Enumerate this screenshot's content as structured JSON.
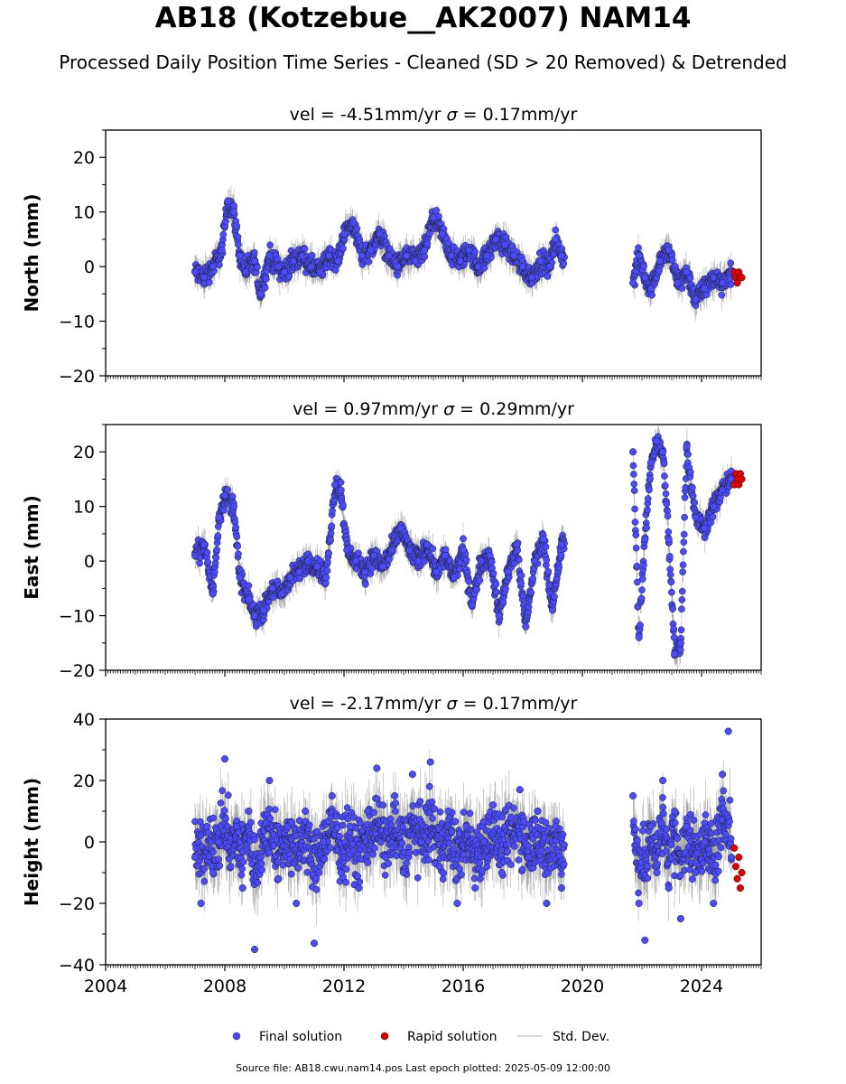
{
  "figure": {
    "title": "AB18 (Kotzebue__AK2007) NAM14",
    "subtitle": "Processed Daily Position Time Series - Cleaned (SD > 20 Removed) & Detrended",
    "footer": "Source file: AB18.cwu.nam14.pos  Last epoch plotted: 2025-05-09 12:00:00",
    "legend": {
      "placement": "bottom-center",
      "items": [
        {
          "label": "Final solution",
          "color": "#4a4aff"
        },
        {
          "label": "Rapid solution",
          "color": "#e00000"
        },
        {
          "label": "Std. Dev.",
          "color": "#c8c8c8"
        }
      ]
    }
  },
  "chart_data": [
    {
      "type": "scatter",
      "title_vel": "vel = -4.51mm/yr",
      "title_sigma": " = 0.17mm/yr",
      "ylabel": "North (mm)",
      "xlim": [
        2004,
        2026
      ],
      "ylim": [
        -20,
        25
      ],
      "yticks": [
        -20,
        -10,
        0,
        10,
        20
      ],
      "grid": false,
      "data_gap": [
        2019.4,
        2021.7
      ],
      "series": [
        {
          "name": "Final solution",
          "color": "#4a4aff",
          "x": [
            2007.0,
            2007.3,
            2007.6,
            2007.9,
            2008.1,
            2008.3,
            2008.5,
            2008.7,
            2009.0,
            2009.2,
            2009.5,
            2009.8,
            2010.0,
            2010.3,
            2010.6,
            2010.9,
            2011.2,
            2011.5,
            2011.8,
            2012.0,
            2012.3,
            2012.6,
            2012.9,
            2013.2,
            2013.5,
            2013.8,
            2014.1,
            2014.4,
            2014.7,
            2015.0,
            2015.3,
            2015.6,
            2015.9,
            2016.2,
            2016.5,
            2016.8,
            2017.1,
            2017.4,
            2017.7,
            2018.0,
            2018.3,
            2018.6,
            2018.9,
            2019.1,
            2019.3,
            2021.7,
            2021.9,
            2022.1,
            2022.3,
            2022.6,
            2022.9,
            2023.2,
            2023.5,
            2023.8,
            2024.1,
            2024.4,
            2024.7,
            2025.0
          ],
          "y": [
            -1,
            -2,
            0,
            3,
            12,
            10,
            2,
            -1,
            1,
            -5,
            2,
            0,
            -1,
            1,
            2,
            0,
            -1,
            2,
            1,
            6,
            8,
            2,
            3,
            6,
            2,
            0,
            2,
            1,
            3,
            9,
            6,
            2,
            1,
            3,
            0,
            2,
            5,
            4,
            2,
            0,
            -2,
            1,
            0,
            5,
            2,
            -3,
            2,
            -2,
            -4,
            1,
            3,
            -3,
            -1,
            -6,
            -4,
            -2,
            -3,
            -1
          ]
        },
        {
          "name": "Rapid solution",
          "color": "#e00000",
          "x": [
            2025.1,
            2025.15,
            2025.2,
            2025.25,
            2025.3,
            2025.35
          ],
          "y": [
            -1,
            -2,
            -3,
            -1,
            -2,
            -2
          ]
        }
      ]
    },
    {
      "type": "scatter",
      "title_vel": "vel = 0.97mm/yr",
      "title_sigma": " = 0.29mm/yr",
      "ylabel": "East (mm)",
      "xlim": [
        2004,
        2026
      ],
      "ylim": [
        -20,
        25
      ],
      "yticks": [
        -20,
        -10,
        0,
        10,
        20
      ],
      "grid": false,
      "data_gap": [
        2019.4,
        2021.7
      ],
      "series": [
        {
          "name": "Final solution",
          "color": "#4a4aff",
          "x": [
            2007.0,
            2007.3,
            2007.6,
            2007.8,
            2008.0,
            2008.3,
            2008.5,
            2008.8,
            2009.0,
            2009.3,
            2009.6,
            2009.9,
            2010.2,
            2010.5,
            2010.8,
            2011.1,
            2011.4,
            2011.7,
            2011.9,
            2012.1,
            2012.4,
            2012.7,
            2013.0,
            2013.3,
            2013.6,
            2013.9,
            2014.2,
            2014.5,
            2014.8,
            2015.1,
            2015.4,
            2015.7,
            2016.0,
            2016.3,
            2016.6,
            2016.9,
            2017.2,
            2017.5,
            2017.8,
            2018.1,
            2018.4,
            2018.7,
            2019.0,
            2019.3,
            2021.7,
            2021.9,
            2022.1,
            2022.3,
            2022.5,
            2022.7,
            2022.9,
            2023.1,
            2023.3,
            2023.5,
            2023.8,
            2024.1,
            2024.4,
            2024.7,
            2025.0
          ],
          "y": [
            1,
            3,
            -6,
            8,
            12,
            10,
            -3,
            -7,
            -10,
            -9,
            -5,
            -6,
            -3,
            -2,
            0,
            -1,
            -3,
            14,
            13,
            2,
            0,
            -2,
            1,
            -1,
            2,
            6,
            2,
            0,
            3,
            -2,
            1,
            -3,
            2,
            -8,
            0,
            1,
            -10,
            -2,
            3,
            -12,
            0,
            4,
            -9,
            3,
            20,
            -14,
            4,
            18,
            22,
            20,
            4,
            -17,
            -15,
            21,
            8,
            6,
            10,
            13,
            15
          ]
        },
        {
          "name": "Rapid solution",
          "color": "#e00000",
          "x": [
            2025.1,
            2025.15,
            2025.2,
            2025.25,
            2025.3,
            2025.35
          ],
          "y": [
            14,
            16,
            15,
            14,
            16,
            15
          ]
        }
      ]
    },
    {
      "type": "scatter",
      "title_vel": "vel = -2.17mm/yr",
      "title_sigma": " = 0.17mm/yr",
      "ylabel": "Height (mm)",
      "xlabel": "",
      "xlim": [
        2004,
        2026
      ],
      "ylim": [
        -40,
        40
      ],
      "yticks": [
        -40,
        -20,
        0,
        20,
        40
      ],
      "xticks": [
        2004,
        2008,
        2012,
        2016,
        2020,
        2024
      ],
      "grid": false,
      "data_gap": [
        2019.4,
        2021.7
      ],
      "series": [
        {
          "name": "Final solution",
          "color": "#4a4aff",
          "x": [
            2007.0,
            2007.2,
            2007.4,
            2007.6,
            2007.8,
            2008.0,
            2008.2,
            2008.4,
            2008.6,
            2008.8,
            2009.0,
            2009.2,
            2009.5,
            2009.8,
            2010.1,
            2010.4,
            2010.7,
            2011.0,
            2011.3,
            2011.6,
            2011.9,
            2012.2,
            2012.5,
            2012.8,
            2013.1,
            2013.4,
            2013.7,
            2014.0,
            2014.3,
            2014.6,
            2014.9,
            2015.2,
            2015.5,
            2015.8,
            2016.1,
            2016.4,
            2016.7,
            2017.0,
            2017.3,
            2017.6,
            2017.9,
            2018.2,
            2018.5,
            2018.8,
            2019.1,
            2019.3,
            2021.7,
            2021.9,
            2022.1,
            2022.3,
            2022.5,
            2022.7,
            2022.9,
            2023.1,
            2023.3,
            2023.5,
            2023.8,
            2024.1,
            2024.4,
            2024.7,
            2024.9,
            2025.0
          ],
          "y": [
            -5,
            -20,
            5,
            -10,
            0,
            27,
            -8,
            5,
            -15,
            10,
            -35,
            -5,
            20,
            -12,
            5,
            -20,
            10,
            -33,
            0,
            15,
            -10,
            5,
            -15,
            10,
            24,
            -5,
            15,
            -10,
            22,
            0,
            26,
            -8,
            10,
            -20,
            5,
            -15,
            0,
            12,
            -10,
            8,
            17,
            -5,
            10,
            -20,
            5,
            -15,
            15,
            -20,
            -32,
            5,
            -10,
            20,
            -15,
            10,
            -25,
            5,
            -10,
            0,
            -20,
            22,
            36,
            -5
          ]
        },
        {
          "name": "Rapid solution",
          "color": "#e00000",
          "x": [
            2025.1,
            2025.15,
            2025.2,
            2025.25,
            2025.3,
            2025.35
          ],
          "y": [
            -2,
            -8,
            -12,
            -5,
            -15,
            -10
          ]
        }
      ]
    }
  ]
}
